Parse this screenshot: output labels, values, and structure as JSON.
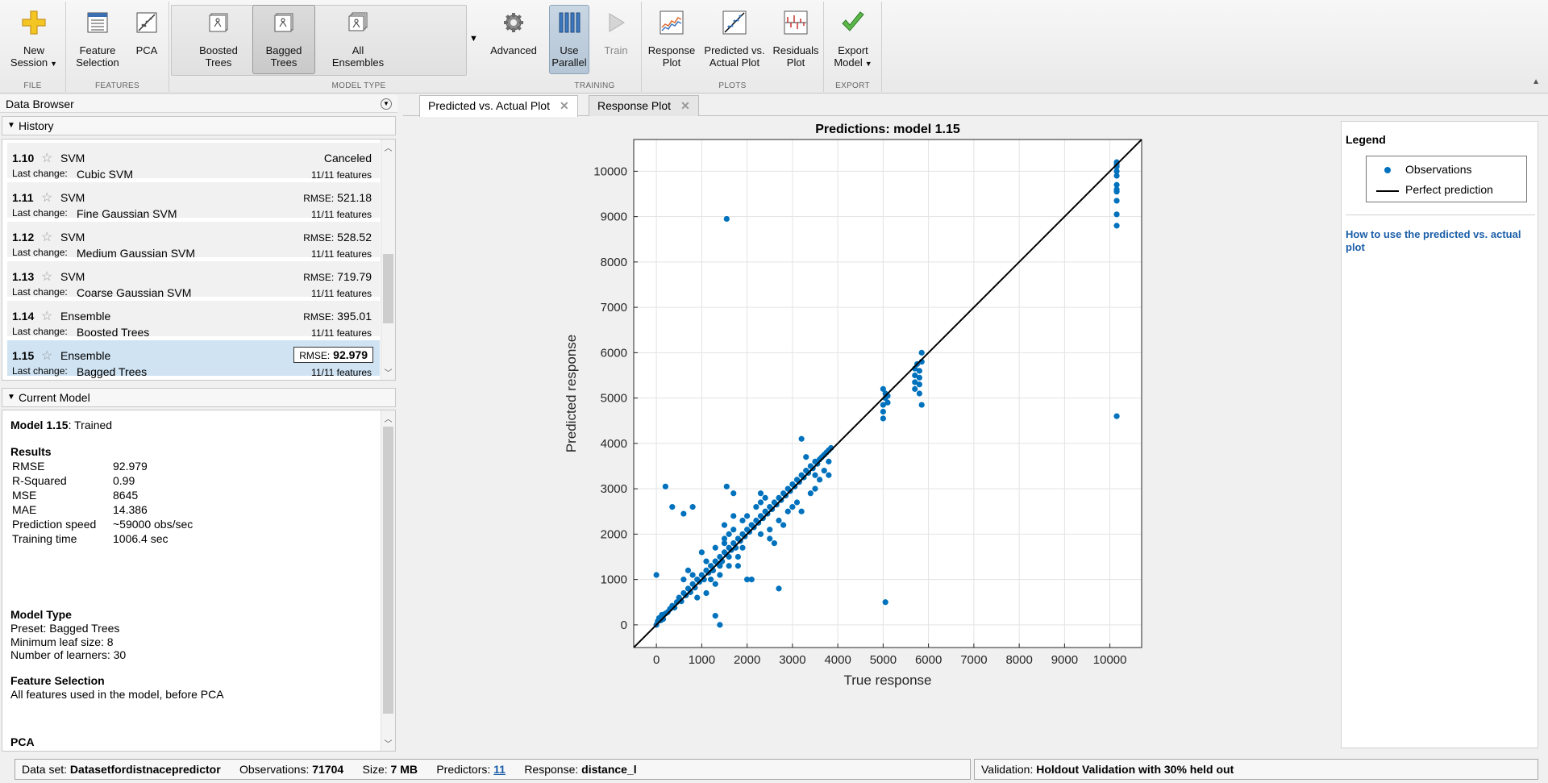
{
  "toolstrip": {
    "file": {
      "label": "FILE",
      "new_session": "New\nSession"
    },
    "features": {
      "label": "FEATURES",
      "feature_selection": "Feature\nSelection",
      "pca": "PCA"
    },
    "model_type": {
      "label": "MODEL TYPE",
      "items": [
        "Boosted\nTrees",
        "Bagged\nTrees",
        "All\nEnsembles"
      ],
      "advanced": "Advanced"
    },
    "training": {
      "label": "TRAINING",
      "use_parallel": "Use\nParallel",
      "train": "Train"
    },
    "plots": {
      "label": "PLOTS",
      "response_plot": "Response\nPlot",
      "pred_vs_actual": "Predicted vs.\nActual Plot",
      "residuals": "Residuals\nPlot"
    },
    "export": {
      "label": "EXPORT",
      "export_model": "Export\nModel"
    }
  },
  "data_browser": {
    "title": "Data Browser",
    "history_title": "History",
    "history": [
      {
        "id": "1.10",
        "type": "SVM",
        "status": "Canceled",
        "rmse_label": "",
        "rmse": "",
        "last_change_label": "Last change:",
        "sub": "Cubic SVM",
        "features": "11/11 features",
        "selected": false
      },
      {
        "id": "1.11",
        "type": "SVM",
        "status": "",
        "rmse_label": "RMSE:",
        "rmse": "521.18",
        "last_change_label": "Last change:",
        "sub": "Fine Gaussian SVM",
        "features": "11/11 features",
        "selected": false
      },
      {
        "id": "1.12",
        "type": "SVM",
        "status": "",
        "rmse_label": "RMSE:",
        "rmse": "528.52",
        "last_change_label": "Last change:",
        "sub": "Medium Gaussian SVM",
        "features": "11/11 features",
        "selected": false
      },
      {
        "id": "1.13",
        "type": "SVM",
        "status": "",
        "rmse_label": "RMSE:",
        "rmse": "719.79",
        "last_change_label": "Last change:",
        "sub": "Coarse Gaussian SVM",
        "features": "11/11 features",
        "selected": false
      },
      {
        "id": "1.14",
        "type": "Ensemble",
        "status": "",
        "rmse_label": "RMSE:",
        "rmse": "395.01",
        "last_change_label": "Last change:",
        "sub": "Boosted Trees",
        "features": "11/11 features",
        "selected": false
      },
      {
        "id": "1.15",
        "type": "Ensemble",
        "status": "",
        "rmse_label": "RMSE:",
        "rmse": "92.979",
        "last_change_label": "Last change:",
        "sub": "Bagged Trees",
        "features": "11/11 features",
        "selected": true
      }
    ],
    "current_model_title": "Current Model",
    "current_model": {
      "name": "Model 1.15",
      "state": ": Trained",
      "results_title": "Results",
      "results": [
        {
          "k": "RMSE",
          "v": "92.979"
        },
        {
          "k": "R-Squared",
          "v": "0.99"
        },
        {
          "k": "MSE",
          "v": "8645"
        },
        {
          "k": "MAE",
          "v": "14.386"
        },
        {
          "k": "Prediction speed",
          "v": "~59000 obs/sec"
        },
        {
          "k": "Training time",
          "v": "1006.4 sec"
        }
      ],
      "model_type_title": "Model Type",
      "model_type_lines": [
        "Preset: Bagged Trees",
        "Minimum leaf size: 8",
        "Number of learners: 30"
      ],
      "feature_selection_title": "Feature Selection",
      "feature_selection_text": "All features used in the model, before PCA",
      "pca_title": "PCA"
    }
  },
  "tabs": [
    {
      "label": "Predicted vs. Actual Plot",
      "active": true
    },
    {
      "label": "Response Plot",
      "active": false
    }
  ],
  "legend": {
    "title": "Legend",
    "items": [
      "Observations",
      "Perfect prediction"
    ],
    "link": "How to use the predicted vs. actual plot"
  },
  "status_bar": {
    "dataset_label": "Data set:",
    "dataset": "Datasetfordistnacepredictor",
    "observations_label": "Observations:",
    "observations": "71704",
    "size_label": "Size:",
    "size": "7 MB",
    "predictors_label": "Predictors:",
    "predictors": "11",
    "response_label": "Response:",
    "response": "distance_l",
    "validation_label": "Validation:",
    "validation": "Holdout Validation with 30% held out"
  },
  "chart_data": {
    "type": "scatter",
    "title": "Predictions: model 1.15",
    "xlabel": "True response",
    "ylabel": "Predicted response",
    "xlim": [
      -500,
      10700
    ],
    "ylim": [
      -500,
      10700
    ],
    "xticks": [
      0,
      1000,
      2000,
      3000,
      4000,
      5000,
      6000,
      7000,
      8000,
      9000,
      10000
    ],
    "yticks": [
      0,
      1000,
      2000,
      3000,
      4000,
      5000,
      6000,
      7000,
      8000,
      9000,
      10000
    ],
    "grid": true,
    "marker_color": "#0072bd",
    "line_color": "#000000",
    "series": [
      {
        "name": "Observations",
        "points": [
          [
            0,
            0
          ],
          [
            30,
            80
          ],
          [
            60,
            150
          ],
          [
            100,
            100
          ],
          [
            120,
            220
          ],
          [
            150,
            130
          ],
          [
            200,
            250
          ],
          [
            250,
            280
          ],
          [
            300,
            350
          ],
          [
            350,
            420
          ],
          [
            400,
            380
          ],
          [
            450,
            500
          ],
          [
            500,
            600
          ],
          [
            550,
            520
          ],
          [
            600,
            700
          ],
          [
            650,
            650
          ],
          [
            700,
            800
          ],
          [
            750,
            720
          ],
          [
            800,
            900
          ],
          [
            850,
            820
          ],
          [
            900,
            1000
          ],
          [
            950,
            950
          ],
          [
            1000,
            1100
          ],
          [
            1050,
            1000
          ],
          [
            1100,
            1200
          ],
          [
            1150,
            1150
          ],
          [
            1200,
            1300
          ],
          [
            1250,
            1200
          ],
          [
            1300,
            1400
          ],
          [
            1350,
            1350
          ],
          [
            1400,
            1500
          ],
          [
            1450,
            1400
          ],
          [
            1500,
            1600
          ],
          [
            1550,
            1550
          ],
          [
            1600,
            1700
          ],
          [
            1650,
            1650
          ],
          [
            1700,
            1800
          ],
          [
            1750,
            1700
          ],
          [
            1800,
            1900
          ],
          [
            1850,
            1850
          ],
          [
            1900,
            2000
          ],
          [
            1950,
            1950
          ],
          [
            2000,
            2100
          ],
          [
            2050,
            2050
          ],
          [
            2100,
            2200
          ],
          [
            2150,
            2150
          ],
          [
            2200,
            2300
          ],
          [
            2250,
            2250
          ],
          [
            2300,
            2400
          ],
          [
            2350,
            2350
          ],
          [
            2400,
            2500
          ],
          [
            2450,
            2450
          ],
          [
            2500,
            2600
          ],
          [
            2550,
            2550
          ],
          [
            2600,
            2700
          ],
          [
            2650,
            2650
          ],
          [
            2700,
            2800
          ],
          [
            2750,
            2750
          ],
          [
            2800,
            2900
          ],
          [
            2850,
            2850
          ],
          [
            2900,
            3000
          ],
          [
            2950,
            2950
          ],
          [
            3000,
            3100
          ],
          [
            3050,
            3050
          ],
          [
            3100,
            3200
          ],
          [
            3150,
            3150
          ],
          [
            3200,
            3300
          ],
          [
            3250,
            3250
          ],
          [
            3300,
            3400
          ],
          [
            3350,
            3350
          ],
          [
            3400,
            3500
          ],
          [
            3450,
            3450
          ],
          [
            3500,
            3600
          ],
          [
            3550,
            3550
          ],
          [
            3600,
            3650
          ],
          [
            3650,
            3700
          ],
          [
            3700,
            3750
          ],
          [
            3750,
            3800
          ],
          [
            3800,
            3850
          ],
          [
            3850,
            3900
          ],
          [
            600,
            1000
          ],
          [
            700,
            1200
          ],
          [
            900,
            600
          ],
          [
            1100,
            700
          ],
          [
            1300,
            900
          ],
          [
            1400,
            1100
          ],
          [
            1500,
            1800
          ],
          [
            1500,
            1900
          ],
          [
            1500,
            2200
          ],
          [
            1600,
            2000
          ],
          [
            1700,
            2100
          ],
          [
            1800,
            1500
          ],
          [
            1900,
            1700
          ],
          [
            2000,
            2400
          ],
          [
            2200,
            2600
          ],
          [
            2300,
            2700
          ],
          [
            2300,
            2900
          ],
          [
            2500,
            2100
          ],
          [
            2600,
            1800
          ],
          [
            2700,
            2300
          ],
          [
            2900,
            2500
          ],
          [
            3100,
            2700
          ],
          [
            3200,
            4100
          ],
          [
            3300,
            3700
          ],
          [
            3400,
            2900
          ],
          [
            3500,
            3000
          ],
          [
            3600,
            3200
          ],
          [
            3700,
            3400
          ],
          [
            3800,
            3600
          ],
          [
            3800,
            3300
          ],
          [
            1000,
            1600
          ],
          [
            1200,
            1000
          ],
          [
            1300,
            1700
          ],
          [
            1600,
            1300
          ],
          [
            1700,
            2400
          ],
          [
            1800,
            1300
          ],
          [
            2100,
            1000
          ],
          [
            2400,
            2800
          ],
          [
            2800,
            2200
          ],
          [
            3000,
            2600
          ],
          [
            2500,
            1900
          ],
          [
            1900,
            2300
          ],
          [
            1400,
            1300
          ],
          [
            1100,
            1400
          ],
          [
            800,
            1100
          ],
          [
            200,
            3050
          ],
          [
            350,
            2600
          ],
          [
            600,
            2450
          ],
          [
            800,
            2600
          ],
          [
            1550,
            3050
          ],
          [
            1700,
            2900
          ],
          [
            1300,
            200
          ],
          [
            1400,
            0
          ],
          [
            0,
            1100
          ],
          [
            2300,
            2000
          ],
          [
            2700,
            800
          ],
          [
            2000,
            1000
          ],
          [
            3500,
            3300
          ],
          [
            3200,
            2500
          ],
          [
            2100,
            2200
          ],
          [
            1600,
            1500
          ],
          [
            5000,
            4550
          ],
          [
            5000,
            4700
          ],
          [
            5000,
            4850
          ],
          [
            5050,
            5000
          ],
          [
            5050,
            5100
          ],
          [
            5000,
            5200
          ],
          [
            5100,
            4900
          ],
          [
            5100,
            5050
          ],
          [
            5700,
            5200
          ],
          [
            5700,
            5350
          ],
          [
            5700,
            5500
          ],
          [
            5700,
            5650
          ],
          [
            5800,
            5100
          ],
          [
            5800,
            5300
          ],
          [
            5800,
            5450
          ],
          [
            5800,
            5600
          ],
          [
            5850,
            5800
          ],
          [
            5850,
            6000
          ],
          [
            5850,
            4850
          ],
          [
            5750,
            5750
          ],
          [
            10150,
            8800
          ],
          [
            10150,
            9050
          ],
          [
            10150,
            9350
          ],
          [
            10150,
            9550
          ],
          [
            10150,
            9700
          ],
          [
            10150,
            9900
          ],
          [
            10150,
            10000
          ],
          [
            10150,
            10100
          ],
          [
            10150,
            10200
          ],
          [
            10150,
            9600
          ],
          [
            10150,
            10150
          ],
          [
            1550,
            8950
          ],
          [
            10150,
            4600
          ],
          [
            5050,
            500
          ]
        ]
      }
    ],
    "reference_line": {
      "name": "Perfect prediction",
      "from": [
        -500,
        -500
      ],
      "to": [
        10700,
        10700
      ]
    }
  }
}
